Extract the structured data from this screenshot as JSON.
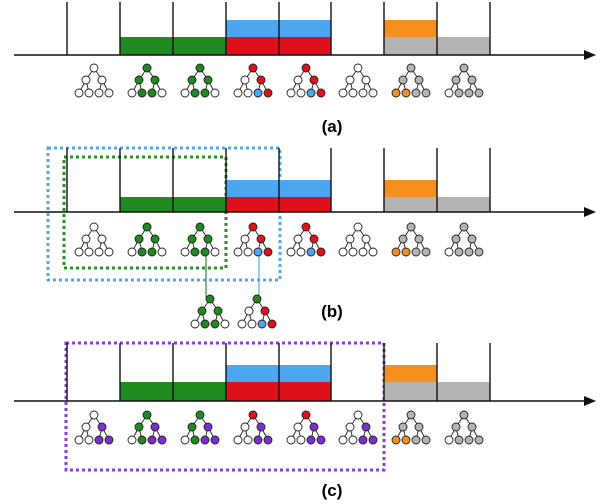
{
  "captions": [
    "(a)",
    "(b)",
    "(c)"
  ],
  "colors": {
    "green": "#1f8a1f",
    "blue": "#4da6f0",
    "red": "#e0111b",
    "orange": "#f5901e",
    "gray": "#b4b4b4",
    "white": "#ffffff",
    "purple": "#7b2fd0",
    "blueDotted": "#54a8e8",
    "greenDotted": "#2e8b2e",
    "purpleDotted": "#8b3cd8"
  },
  "panels": [
    {
      "id": "a",
      "bars": [
        "white",
        "green",
        "green",
        "blue-red",
        "blue-red",
        "white",
        "orange-gray",
        "gray"
      ],
      "trees": [
        {
          "root": "white",
          "mid": [
            "white",
            "white"
          ],
          "leaves": [
            "white",
            "white",
            "white",
            "white"
          ]
        },
        {
          "root": "green",
          "mid": [
            "green",
            "green"
          ],
          "leaves": [
            "white",
            "green",
            "green",
            "white"
          ]
        },
        {
          "root": "green",
          "mid": [
            "green",
            "green"
          ],
          "leaves": [
            "white",
            "green",
            "green",
            "white"
          ]
        },
        {
          "root": "red",
          "mid": [
            "white",
            "red"
          ],
          "leaves": [
            "white",
            "white",
            "blue",
            "red"
          ]
        },
        {
          "root": "red",
          "mid": [
            "white",
            "red"
          ],
          "leaves": [
            "white",
            "white",
            "blue",
            "red"
          ]
        },
        {
          "root": "white",
          "mid": [
            "white",
            "white"
          ],
          "leaves": [
            "white",
            "white",
            "white",
            "white"
          ]
        },
        {
          "root": "gray",
          "mid": [
            "gray",
            "gray"
          ],
          "leaves": [
            "orange",
            "orange",
            "gray",
            "gray"
          ]
        },
        {
          "root": "gray",
          "mid": [
            "gray",
            "gray"
          ],
          "leaves": [
            "white",
            "gray",
            "gray",
            "gray"
          ]
        }
      ]
    },
    {
      "id": "b",
      "bars": [
        "white",
        "green",
        "green",
        "blue-red",
        "blue-red",
        "white",
        "orange-gray",
        "gray"
      ],
      "trees": [
        {
          "root": "white",
          "mid": [
            "white",
            "white"
          ],
          "leaves": [
            "white",
            "white",
            "white",
            "white"
          ]
        },
        {
          "root": "green",
          "mid": [
            "green",
            "green"
          ],
          "leaves": [
            "white",
            "green",
            "green",
            "white"
          ]
        },
        {
          "root": "green",
          "mid": [
            "green",
            "green"
          ],
          "leaves": [
            "white",
            "green",
            "green",
            "white"
          ]
        },
        {
          "root": "red",
          "mid": [
            "white",
            "red"
          ],
          "leaves": [
            "white",
            "white",
            "blue",
            "red"
          ]
        },
        {
          "root": "red",
          "mid": [
            "white",
            "red"
          ],
          "leaves": [
            "white",
            "white",
            "blue",
            "red"
          ]
        },
        {
          "root": "white",
          "mid": [
            "white",
            "white"
          ],
          "leaves": [
            "white",
            "white",
            "white",
            "white"
          ]
        },
        {
          "root": "gray",
          "mid": [
            "gray",
            "gray"
          ],
          "leaves": [
            "orange",
            "orange",
            "gray",
            "gray"
          ]
        },
        {
          "root": "gray",
          "mid": [
            "gray",
            "gray"
          ],
          "leaves": [
            "white",
            "gray",
            "gray",
            "gray"
          ]
        }
      ],
      "extraTrees": [
        {
          "root": "green",
          "mid": [
            "green",
            "green"
          ],
          "leaves": [
            "white",
            "green",
            "green",
            "white"
          ]
        },
        {
          "root": "green",
          "mid": [
            "white",
            "red"
          ],
          "leaves": [
            "white",
            "white",
            "blue",
            "red"
          ]
        }
      ]
    },
    {
      "id": "c",
      "bars": [
        "white",
        "green",
        "green",
        "blue-red",
        "blue-red",
        "white",
        "orange-gray",
        "gray"
      ],
      "trees": [
        {
          "root": "white",
          "mid": [
            "white",
            "purple"
          ],
          "leaves": [
            "white",
            "white",
            "purple",
            "purple"
          ]
        },
        {
          "root": "green",
          "mid": [
            "green",
            "purple"
          ],
          "leaves": [
            "white",
            "green",
            "purple",
            "purple"
          ]
        },
        {
          "root": "green",
          "mid": [
            "green",
            "purple"
          ],
          "leaves": [
            "white",
            "green",
            "purple",
            "purple"
          ]
        },
        {
          "root": "red",
          "mid": [
            "white",
            "purple"
          ],
          "leaves": [
            "white",
            "white",
            "purple",
            "purple"
          ]
        },
        {
          "root": "red",
          "mid": [
            "white",
            "purple"
          ],
          "leaves": [
            "white",
            "white",
            "purple",
            "purple"
          ]
        },
        {
          "root": "white",
          "mid": [
            "white",
            "purple"
          ],
          "leaves": [
            "white",
            "white",
            "purple",
            "purple"
          ]
        },
        {
          "root": "gray",
          "mid": [
            "gray",
            "gray"
          ],
          "leaves": [
            "orange",
            "orange",
            "gray",
            "gray"
          ]
        },
        {
          "root": "gray",
          "mid": [
            "gray",
            "gray"
          ],
          "leaves": [
            "white",
            "gray",
            "gray",
            "gray"
          ]
        }
      ]
    }
  ]
}
